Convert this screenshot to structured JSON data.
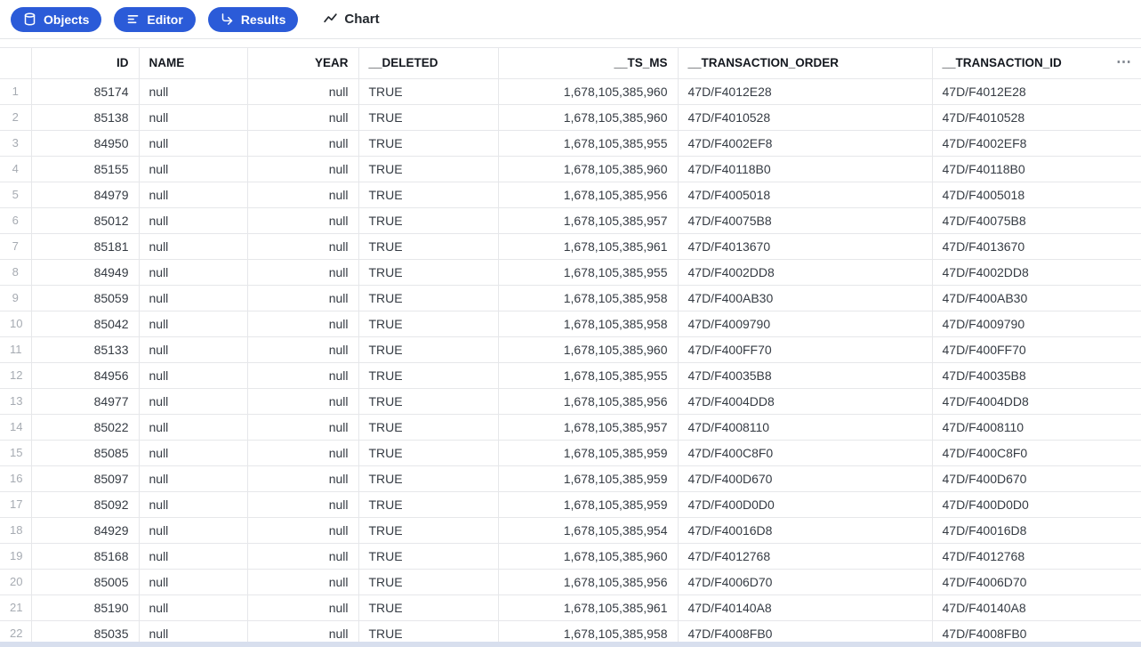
{
  "toolbar": {
    "objects_button": {
      "label": "Objects",
      "icon": "database-icon"
    },
    "editor_button": {
      "label": "Editor",
      "icon": "align-left-icon"
    },
    "results_button": {
      "label": "Results",
      "icon": "corner-down-right-icon"
    },
    "chart_tab": {
      "label": "Chart",
      "icon": "trend-line-icon"
    },
    "button_color": "#2b5bd8"
  },
  "table": {
    "columns": [
      {
        "key": "rownum",
        "label": ""
      },
      {
        "key": "id",
        "label": "ID"
      },
      {
        "key": "name",
        "label": "NAME"
      },
      {
        "key": "year",
        "label": "YEAR"
      },
      {
        "key": "deleted",
        "label": "__DELETED"
      },
      {
        "key": "ts_ms",
        "label": "__TS_MS"
      },
      {
        "key": "transaction_order",
        "label": "__TRANSACTION_ORDER"
      },
      {
        "key": "transaction_id",
        "label": "__TRANSACTION_ID"
      }
    ],
    "column_menu_icon": "ellipsis-icon",
    "column_menu_glyph": "⋯",
    "rows": [
      [
        "1",
        "85174",
        "null",
        "null",
        "TRUE",
        "1,678,105,385,960",
        "47D/F4012E28",
        "47D/F4012E28"
      ],
      [
        "2",
        "85138",
        "null",
        "null",
        "TRUE",
        "1,678,105,385,960",
        "47D/F4010528",
        "47D/F4010528"
      ],
      [
        "3",
        "84950",
        "null",
        "null",
        "TRUE",
        "1,678,105,385,955",
        "47D/F4002EF8",
        "47D/F4002EF8"
      ],
      [
        "4",
        "85155",
        "null",
        "null",
        "TRUE",
        "1,678,105,385,960",
        "47D/F40118B0",
        "47D/F40118B0"
      ],
      [
        "5",
        "84979",
        "null",
        "null",
        "TRUE",
        "1,678,105,385,956",
        "47D/F4005018",
        "47D/F4005018"
      ],
      [
        "6",
        "85012",
        "null",
        "null",
        "TRUE",
        "1,678,105,385,957",
        "47D/F40075B8",
        "47D/F40075B8"
      ],
      [
        "7",
        "85181",
        "null",
        "null",
        "TRUE",
        "1,678,105,385,961",
        "47D/F4013670",
        "47D/F4013670"
      ],
      [
        "8",
        "84949",
        "null",
        "null",
        "TRUE",
        "1,678,105,385,955",
        "47D/F4002DD8",
        "47D/F4002DD8"
      ],
      [
        "9",
        "85059",
        "null",
        "null",
        "TRUE",
        "1,678,105,385,958",
        "47D/F400AB30",
        "47D/F400AB30"
      ],
      [
        "10",
        "85042",
        "null",
        "null",
        "TRUE",
        "1,678,105,385,958",
        "47D/F4009790",
        "47D/F4009790"
      ],
      [
        "11",
        "85133",
        "null",
        "null",
        "TRUE",
        "1,678,105,385,960",
        "47D/F400FF70",
        "47D/F400FF70"
      ],
      [
        "12",
        "84956",
        "null",
        "null",
        "TRUE",
        "1,678,105,385,955",
        "47D/F40035B8",
        "47D/F40035B8"
      ],
      [
        "13",
        "84977",
        "null",
        "null",
        "TRUE",
        "1,678,105,385,956",
        "47D/F4004DD8",
        "47D/F4004DD8"
      ],
      [
        "14",
        "85022",
        "null",
        "null",
        "TRUE",
        "1,678,105,385,957",
        "47D/F4008110",
        "47D/F4008110"
      ],
      [
        "15",
        "85085",
        "null",
        "null",
        "TRUE",
        "1,678,105,385,959",
        "47D/F400C8F0",
        "47D/F400C8F0"
      ],
      [
        "16",
        "85097",
        "null",
        "null",
        "TRUE",
        "1,678,105,385,959",
        "47D/F400D670",
        "47D/F400D670"
      ],
      [
        "17",
        "85092",
        "null",
        "null",
        "TRUE",
        "1,678,105,385,959",
        "47D/F400D0D0",
        "47D/F400D0D0"
      ],
      [
        "18",
        "84929",
        "null",
        "null",
        "TRUE",
        "1,678,105,385,954",
        "47D/F40016D8",
        "47D/F40016D8"
      ],
      [
        "19",
        "85168",
        "null",
        "null",
        "TRUE",
        "1,678,105,385,960",
        "47D/F4012768",
        "47D/F4012768"
      ],
      [
        "20",
        "85005",
        "null",
        "null",
        "TRUE",
        "1,678,105,385,956",
        "47D/F4006D70",
        "47D/F4006D70"
      ],
      [
        "21",
        "85190",
        "null",
        "null",
        "TRUE",
        "1,678,105,385,961",
        "47D/F40140A8",
        "47D/F40140A8"
      ],
      [
        "22",
        "85035",
        "null",
        "null",
        "TRUE",
        "1,678,105,385,958",
        "47D/F4008FB0",
        "47D/F4008FB0"
      ]
    ]
  },
  "colors": {
    "accent": "#2b5bd8",
    "grid": "#e6e7ea",
    "scrollbar": "#d8dfee"
  }
}
